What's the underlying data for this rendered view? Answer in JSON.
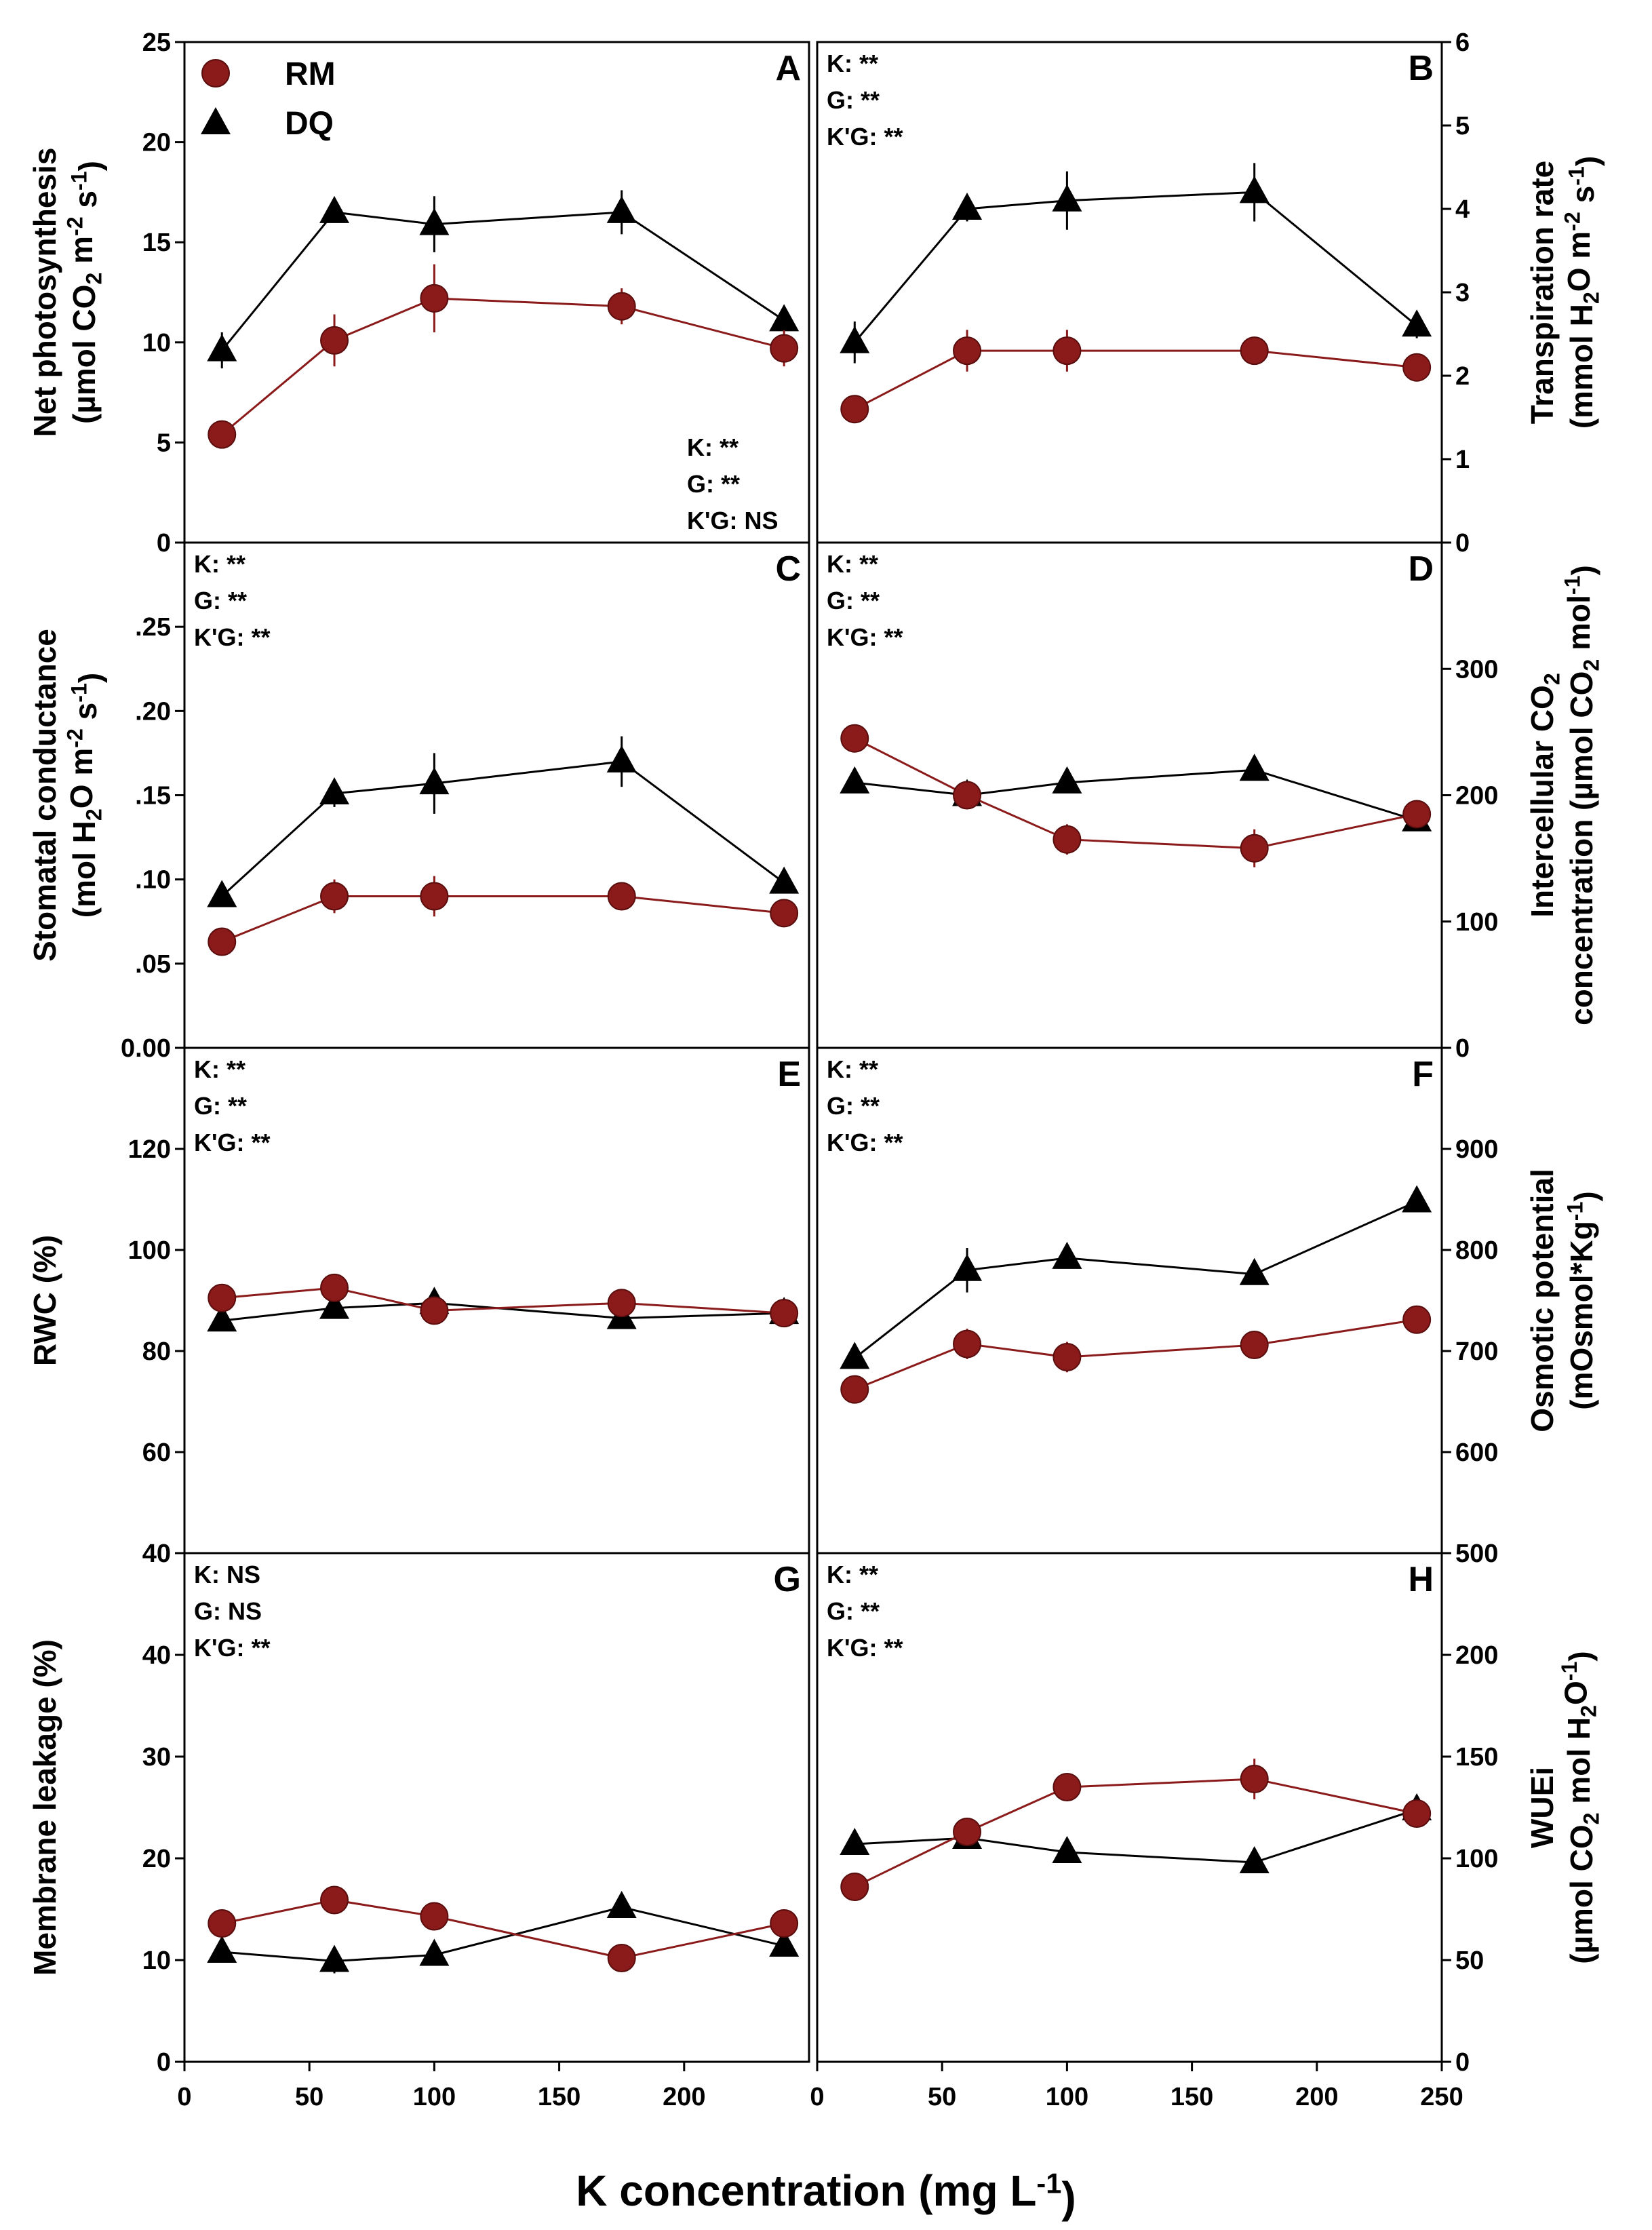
{
  "chart_data": {
    "type": "line",
    "x": [
      15,
      60,
      100,
      175,
      240
    ],
    "xlabel": "K concentration (mg L-1)",
    "xlim": [
      0,
      250
    ],
    "xticks": [
      0,
      50,
      100,
      150,
      200,
      250
    ],
    "legend": {
      "placement": "top-left",
      "entries": [
        {
          "name": "RM",
          "marker": "circle",
          "color": "#8b1a1a"
        },
        {
          "name": "DQ",
          "marker": "triangle",
          "color": "#000000"
        }
      ]
    },
    "panels": [
      {
        "letter": "A",
        "ylabel_lines": [
          "Net photosynthesis",
          "(µmol CO2 m-2 s-1)"
        ],
        "ylim": [
          0,
          25
        ],
        "yticks": [
          "0",
          "5",
          "10",
          "15",
          "20",
          "25"
        ],
        "stats": [
          "K: **",
          "G: **",
          "K'G: NS"
        ],
        "stats_pos": "bottom-right",
        "series": [
          {
            "name": "RM",
            "values": [
              5.4,
              10.1,
              12.2,
              11.8,
              9.7
            ],
            "err": [
              0.4,
              1.3,
              1.7,
              0.9,
              0.9
            ]
          },
          {
            "name": "DQ",
            "values": [
              9.6,
              16.5,
              15.9,
              16.5,
              11.1
            ],
            "err": [
              0.9,
              0.5,
              1.4,
              1.1,
              0.5
            ]
          }
        ]
      },
      {
        "letter": "B",
        "ylabel_lines": [
          "Transpiration rate",
          "(mmol H2O m-2 s-1)"
        ],
        "ylim": [
          0,
          6
        ],
        "yticks": [
          "0",
          "1",
          "2",
          "3",
          "4",
          "5",
          "6"
        ],
        "stats": [
          "K: **",
          "G: **",
          "K'G: **"
        ],
        "stats_pos": "top-left",
        "series": [
          {
            "name": "RM",
            "values": [
              1.6,
              2.3,
              2.3,
              2.3,
              2.1
            ],
            "err": [
              0.1,
              0.25,
              0.25,
              0.1,
              0.12
            ]
          },
          {
            "name": "DQ",
            "values": [
              2.4,
              4.0,
              4.1,
              4.2,
              2.6
            ],
            "err": [
              0.25,
              0.15,
              0.35,
              0.35,
              0.15
            ]
          }
        ]
      },
      {
        "letter": "C",
        "ylabel_lines": [
          "Stomatal conductance",
          "(mol H2O m-2 s-1)"
        ],
        "ylim": [
          0,
          0.3
        ],
        "yticks": [
          "0.00",
          ".05",
          ".10",
          ".15",
          ".20",
          ".25"
        ],
        "stats": [
          "K: **",
          "G: **",
          "K'G: **"
        ],
        "stats_pos": "top-left",
        "series": [
          {
            "name": "RM",
            "values": [
              0.063,
              0.09,
              0.09,
              0.09,
              0.08
            ],
            "err": [
              0.004,
              0.01,
              0.012,
              0.004,
              0.006
            ]
          },
          {
            "name": "DQ",
            "values": [
              0.09,
              0.151,
              0.157,
              0.17,
              0.098
            ],
            "err": [
              0.005,
              0.008,
              0.018,
              0.015,
              0.005
            ]
          }
        ]
      },
      {
        "letter": "D",
        "ylabel_lines": [
          "Intercellular CO2",
          "concentration (µmol CO2 mol-1)"
        ],
        "ylim": [
          0,
          400
        ],
        "yticks": [
          "0",
          "100",
          "200",
          "300"
        ],
        "stats": [
          "K: **",
          "G: **",
          "K'G: **"
        ],
        "stats_pos": "top-left",
        "series": [
          {
            "name": "RM",
            "values": [
              245,
              200,
              165,
              158,
              185
            ],
            "err": [
              5,
              6,
              12,
              15,
              5
            ]
          },
          {
            "name": "DQ",
            "values": [
              210,
              200,
              210,
              220,
              180
            ],
            "err": [
              5,
              8,
              6,
              5,
              5
            ]
          }
        ]
      },
      {
        "letter": "E",
        "ylabel_lines": [
          "RWC (%)"
        ],
        "ylim": [
          40,
          140
        ],
        "yticks": [
          "40",
          "60",
          "80",
          "100",
          "120"
        ],
        "stats": [
          "K: **",
          "G: **",
          "K'G: **"
        ],
        "stats_pos": "top-left",
        "series": [
          {
            "name": "RM",
            "values": [
              90.5,
              92.5,
              88.0,
              89.5,
              87.5
            ],
            "err": [
              1.0,
              1.2,
              1.5,
              1.0,
              1.0
            ]
          },
          {
            "name": "DQ",
            "values": [
              86.0,
              88.5,
              89.5,
              86.5,
              87.5
            ],
            "err": [
              1.0,
              1.0,
              1.2,
              1.0,
              1.0
            ]
          }
        ]
      },
      {
        "letter": "F",
        "ylabel_lines": [
          "Osmotic potential",
          "(mOsmol*Kg-1)"
        ],
        "ylim": [
          500,
          1000
        ],
        "yticks": [
          "500",
          "600",
          "700",
          "800",
          "900"
        ],
        "stats": [
          "K: **",
          "G: **",
          "K'G: **"
        ],
        "stats_pos": "top-left",
        "series": [
          {
            "name": "RM",
            "values": [
              662,
              707,
              694,
              706,
              731
            ],
            "err": [
              6,
              15,
              15,
              6,
              6
            ]
          },
          {
            "name": "DQ",
            "values": [
              693,
              780,
              792,
              776,
              848
            ],
            "err": [
              5,
              22,
              8,
              8,
              8
            ]
          }
        ]
      },
      {
        "letter": "G",
        "ylabel_lines": [
          "Membrane leakage (%)"
        ],
        "ylim": [
          0,
          50
        ],
        "yticks": [
          "0",
          "10",
          "20",
          "30",
          "40"
        ],
        "stats": [
          "K: NS",
          "G: NS",
          "K'G: **"
        ],
        "stats_pos": "top-left",
        "series": [
          {
            "name": "RM",
            "values": [
              13.6,
              15.9,
              14.3,
              10.2,
              13.6
            ],
            "err": [
              0.8,
              0.8,
              0.8,
              0.5,
              0.6
            ]
          },
          {
            "name": "DQ",
            "values": [
              10.8,
              9.9,
              10.5,
              15.2,
              11.4
            ],
            "err": [
              0.5,
              1.2,
              0.8,
              0.6,
              0.6
            ]
          }
        ]
      },
      {
        "letter": "H",
        "ylabel_lines": [
          "WUEi",
          "(µmol CO2 mol H2O-1)"
        ],
        "ylim": [
          0,
          250
        ],
        "yticks": [
          "0",
          "50",
          "100",
          "150",
          "200"
        ],
        "stats": [
          "K: **",
          "G: **",
          "K'G: **"
        ],
        "stats_pos": "top-left",
        "series": [
          {
            "name": "RM",
            "values": [
              86,
              113,
              135,
              139,
              122
            ],
            "err": [
              3,
              5,
              6,
              10,
              5
            ]
          },
          {
            "name": "DQ",
            "values": [
              107,
              110,
              103,
              98,
              124
            ],
            "err": [
              3,
              5,
              4,
              3,
              3
            ]
          }
        ]
      }
    ]
  }
}
